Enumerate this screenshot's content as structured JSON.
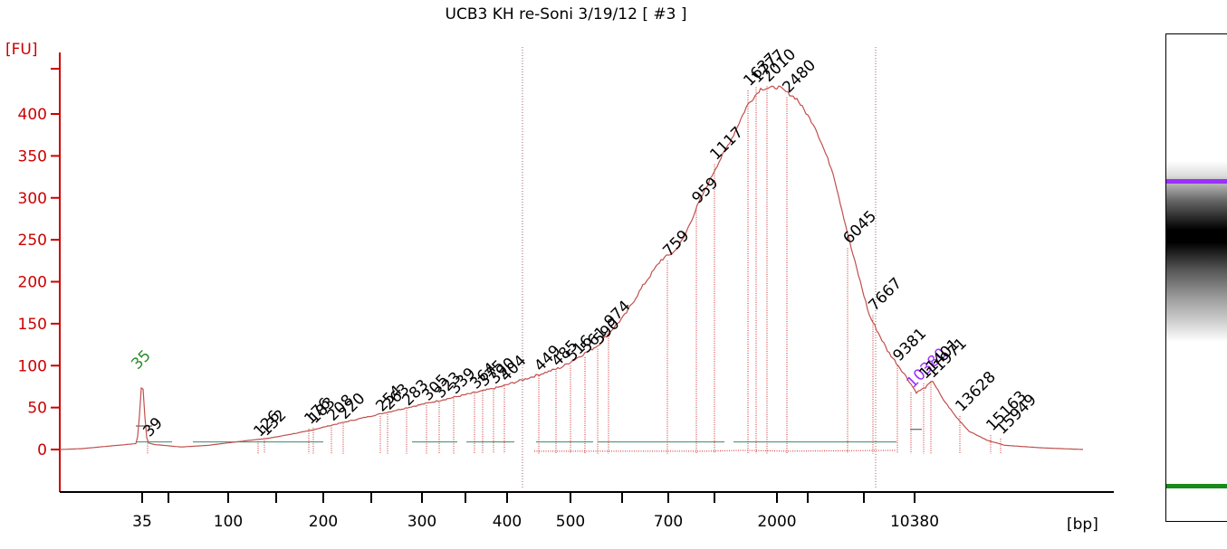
{
  "title": "UCB3 KH re-Soni 3/19/12  [ #3 ]",
  "colors": {
    "axis": "#cc0000",
    "trace": "#c0504d",
    "dotted": "#cc2222",
    "baseline": "#3a8a6a",
    "marker_green": "#2e8b2e",
    "marker_purple": "#9b30ff",
    "text": "#000000"
  },
  "chart_data": {
    "type": "line",
    "title": "UCB3 KH re-Soni 3/19/12  [ #3 ]",
    "ylabel": "[FU]",
    "xlabel": "[bp]",
    "ylim": [
      -50,
      460
    ],
    "y_ticks": [
      0,
      50,
      100,
      150,
      200,
      250,
      300,
      350,
      400
    ],
    "x_ticks": [
      "35",
      "100",
      "200",
      "300",
      "400",
      "500",
      "700",
      "2000",
      "10380"
    ],
    "x_ticks_unlabeled": 7,
    "markers": [
      {
        "label": "35",
        "kind": "lower",
        "color": "green"
      },
      {
        "label": "10380",
        "kind": "upper",
        "color": "purple"
      }
    ],
    "peaks": [
      {
        "label": "39",
        "y": 10
      },
      {
        "label": "126",
        "y": 10
      },
      {
        "label": "132",
        "y": 11
      },
      {
        "label": "176",
        "y": 25
      },
      {
        "label": "183",
        "y": 26
      },
      {
        "label": "208",
        "y": 29
      },
      {
        "label": "220",
        "y": 31
      },
      {
        "label": "254",
        "y": 40
      },
      {
        "label": "263",
        "y": 42
      },
      {
        "label": "283",
        "y": 47
      },
      {
        "label": "305",
        "y": 53
      },
      {
        "label": "323",
        "y": 56
      },
      {
        "label": "339",
        "y": 61
      },
      {
        "label": "364",
        "y": 67
      },
      {
        "label": "375",
        "y": 70
      },
      {
        "label": "390",
        "y": 73
      },
      {
        "label": "404",
        "y": 76
      },
      {
        "label": "449",
        "y": 88
      },
      {
        "label": "485",
        "y": 94
      },
      {
        "label": "516",
        "y": 100
      },
      {
        "label": "561",
        "y": 110
      },
      {
        "label": "590",
        "y": 120
      },
      {
        "label": "974",
        "y": 141
      },
      {
        "label": "759",
        "y": 225
      },
      {
        "label": "959",
        "y": 288
      },
      {
        "label": "1117",
        "y": 340
      },
      {
        "label": "1637",
        "y": 428
      },
      {
        "label": "1777",
        "y": 432
      },
      {
        "label": "2010",
        "y": 433
      },
      {
        "label": "2480",
        "y": 420
      },
      {
        "label": "6045",
        "y": 240
      },
      {
        "label": "7667",
        "y": 160
      },
      {
        "label": "9381",
        "y": 100
      },
      {
        "label": "10380",
        "y": 68
      },
      {
        "label": "11401",
        "y": 79
      },
      {
        "label": "11971",
        "y": 80
      },
      {
        "label": "13628",
        "y": 40
      },
      {
        "label": "15163",
        "y": 17
      },
      {
        "label": "15949",
        "y": 13
      }
    ],
    "series": [
      {
        "x_bp": [
          "20",
          "35",
          "39",
          "100",
          "200",
          "300",
          "400",
          "500",
          "700",
          "1117",
          "2010",
          "6045",
          "10380",
          "11401",
          "15949",
          "24000"
        ],
        "y": [
          0,
          86,
          10,
          12,
          29,
          53,
          75,
          98,
          140,
          340,
          433,
          240,
          68,
          82,
          13,
          0
        ]
      }
    ]
  }
}
